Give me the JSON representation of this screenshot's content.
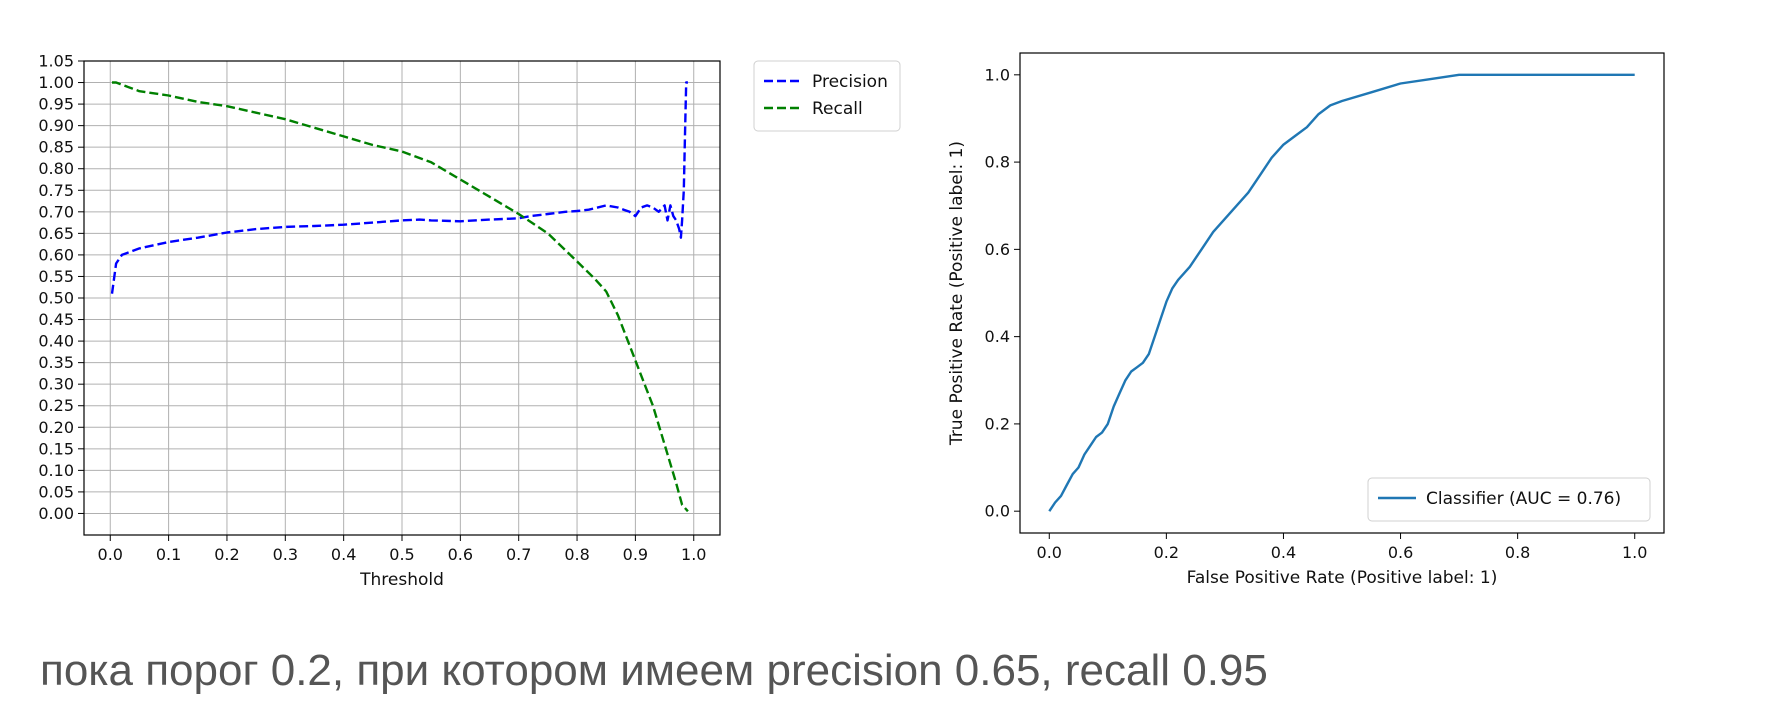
{
  "chart_data": [
    {
      "type": "line",
      "title": "",
      "xlabel": "Threshold",
      "ylabel": "",
      "xlim": [
        -0.045,
        1.045
      ],
      "ylim": [
        -0.05,
        1.05
      ],
      "xticks": [
        "0.0",
        "0.1",
        "0.2",
        "0.3",
        "0.4",
        "0.5",
        "0.6",
        "0.7",
        "0.8",
        "0.9",
        "1.0"
      ],
      "yticks": [
        "0.00",
        "0.05",
        "0.10",
        "0.15",
        "0.20",
        "0.25",
        "0.30",
        "0.35",
        "0.40",
        "0.45",
        "0.50",
        "0.55",
        "0.60",
        "0.65",
        "0.70",
        "0.75",
        "0.80",
        "0.85",
        "0.90",
        "0.95",
        "1.00",
        "1.05"
      ],
      "grid": true,
      "legend_position": "outside-top-right",
      "series": [
        {
          "name": "Precision",
          "color": "#0000ff",
          "style": "dashed",
          "points": [
            [
              0.003,
              0.51
            ],
            [
              0.01,
              0.58
            ],
            [
              0.02,
              0.6
            ],
            [
              0.05,
              0.615
            ],
            [
              0.1,
              0.63
            ],
            [
              0.15,
              0.64
            ],
            [
              0.2,
              0.652
            ],
            [
              0.25,
              0.66
            ],
            [
              0.3,
              0.665
            ],
            [
              0.35,
              0.667
            ],
            [
              0.4,
              0.67
            ],
            [
              0.45,
              0.675
            ],
            [
              0.5,
              0.68
            ],
            [
              0.53,
              0.682
            ],
            [
              0.55,
              0.68
            ],
            [
              0.6,
              0.678
            ],
            [
              0.65,
              0.682
            ],
            [
              0.7,
              0.685
            ],
            [
              0.72,
              0.69
            ],
            [
              0.75,
              0.695
            ],
            [
              0.78,
              0.7
            ],
            [
              0.8,
              0.702
            ],
            [
              0.82,
              0.705
            ],
            [
              0.85,
              0.715
            ],
            [
              0.87,
              0.71
            ],
            [
              0.88,
              0.705
            ],
            [
              0.89,
              0.7
            ],
            [
              0.9,
              0.69
            ],
            [
              0.91,
              0.71
            ],
            [
              0.92,
              0.715
            ],
            [
              0.93,
              0.71
            ],
            [
              0.94,
              0.7
            ],
            [
              0.95,
              0.715
            ],
            [
              0.955,
              0.68
            ],
            [
              0.96,
              0.715
            ],
            [
              0.965,
              0.69
            ],
            [
              0.97,
              0.68
            ],
            [
              0.975,
              0.66
            ],
            [
              0.978,
              0.64
            ],
            [
              0.98,
              0.68
            ],
            [
              0.983,
              0.75
            ],
            [
              0.985,
              0.88
            ],
            [
              0.987,
              1.0
            ],
            [
              0.99,
              1.0
            ]
          ]
        },
        {
          "name": "Recall",
          "color": "#008000",
          "style": "dashed",
          "points": [
            [
              0.003,
              1.0
            ],
            [
              0.01,
              1.0
            ],
            [
              0.02,
              0.995
            ],
            [
              0.05,
              0.98
            ],
            [
              0.1,
              0.97
            ],
            [
              0.15,
              0.955
            ],
            [
              0.2,
              0.945
            ],
            [
              0.25,
              0.93
            ],
            [
              0.3,
              0.915
            ],
            [
              0.35,
              0.895
            ],
            [
              0.4,
              0.875
            ],
            [
              0.45,
              0.855
            ],
            [
              0.5,
              0.84
            ],
            [
              0.55,
              0.815
            ],
            [
              0.6,
              0.775
            ],
            [
              0.65,
              0.735
            ],
            [
              0.7,
              0.695
            ],
            [
              0.75,
              0.65
            ],
            [
              0.8,
              0.585
            ],
            [
              0.83,
              0.545
            ],
            [
              0.85,
              0.515
            ],
            [
              0.87,
              0.46
            ],
            [
              0.89,
              0.39
            ],
            [
              0.91,
              0.32
            ],
            [
              0.93,
              0.25
            ],
            [
              0.95,
              0.16
            ],
            [
              0.97,
              0.07
            ],
            [
              0.98,
              0.02
            ],
            [
              0.99,
              0.005
            ]
          ]
        }
      ]
    },
    {
      "type": "line",
      "title": "",
      "xlabel": "False Positive Rate (Positive label: 1)",
      "ylabel": "True Positive Rate (Positive label: 1)",
      "xlim": [
        -0.05,
        1.05
      ],
      "ylim": [
        -0.05,
        1.05
      ],
      "xticks": [
        "0.0",
        "0.2",
        "0.4",
        "0.6",
        "0.8",
        "1.0"
      ],
      "yticks": [
        "0.0",
        "0.2",
        "0.4",
        "0.6",
        "0.8",
        "1.0"
      ],
      "grid": false,
      "legend_position": "bottom-right",
      "series": [
        {
          "name": "Classifier (AUC = 0.76)",
          "color": "#1f77b4",
          "style": "solid",
          "points": [
            [
              0.0,
              0.0
            ],
            [
              0.01,
              0.02
            ],
            [
              0.02,
              0.035
            ],
            [
              0.03,
              0.06
            ],
            [
              0.04,
              0.085
            ],
            [
              0.05,
              0.1
            ],
            [
              0.06,
              0.13
            ],
            [
              0.07,
              0.15
            ],
            [
              0.08,
              0.17
            ],
            [
              0.09,
              0.18
            ],
            [
              0.1,
              0.2
            ],
            [
              0.11,
              0.24
            ],
            [
              0.12,
              0.27
            ],
            [
              0.13,
              0.3
            ],
            [
              0.14,
              0.32
            ],
            [
              0.15,
              0.33
            ],
            [
              0.16,
              0.34
            ],
            [
              0.17,
              0.36
            ],
            [
              0.18,
              0.4
            ],
            [
              0.19,
              0.44
            ],
            [
              0.2,
              0.48
            ],
            [
              0.21,
              0.51
            ],
            [
              0.22,
              0.53
            ],
            [
              0.24,
              0.56
            ],
            [
              0.26,
              0.6
            ],
            [
              0.28,
              0.64
            ],
            [
              0.3,
              0.67
            ],
            [
              0.32,
              0.7
            ],
            [
              0.34,
              0.73
            ],
            [
              0.36,
              0.77
            ],
            [
              0.38,
              0.81
            ],
            [
              0.4,
              0.84
            ],
            [
              0.42,
              0.86
            ],
            [
              0.44,
              0.88
            ],
            [
              0.46,
              0.91
            ],
            [
              0.48,
              0.93
            ],
            [
              0.5,
              0.94
            ],
            [
              0.55,
              0.96
            ],
            [
              0.6,
              0.98
            ],
            [
              0.65,
              0.99
            ],
            [
              0.7,
              1.0
            ],
            [
              0.8,
              1.0
            ],
            [
              0.9,
              1.0
            ],
            [
              1.0,
              1.0
            ]
          ]
        }
      ]
    }
  ],
  "caption": "пока порог 0.2, при котором имеем precision 0.65, recall 0.95"
}
